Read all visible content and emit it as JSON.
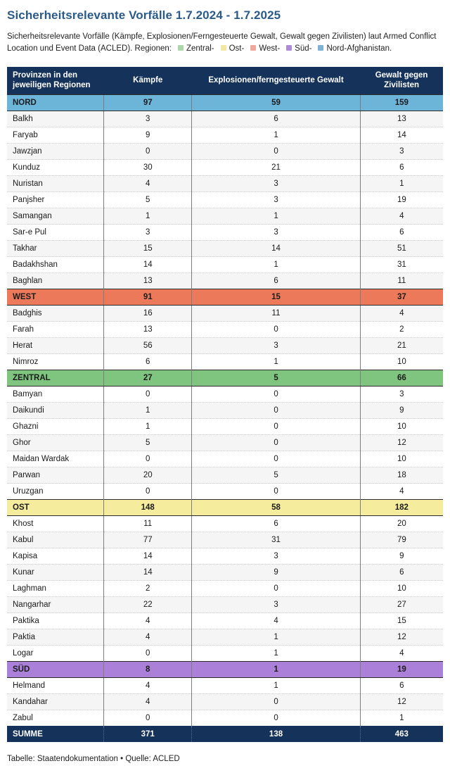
{
  "page": {
    "title": "Sicherheitsrelevante Vorfälle 1.7.2024 - 1.7.2025",
    "subtitle": "Sicherheitsrelevante Vorfälle (Kämpfe, Explosionen/Ferngesteuerte Gewalt, Gewalt gegen Zivilisten) laut Armed Conflict Location und Event Data (ACLED). Regionen:",
    "footer": "Tabelle: Staatendokumentation • Quelle: ACLED"
  },
  "colors": {
    "title_blue": "#2a5a8a",
    "header_navy": "#14325a",
    "region_nord": "#6db4d9",
    "region_west": "#ec7a5a",
    "region_zentral": "#7fc57f",
    "region_ost": "#f6ec9d",
    "region_sued": "#aa80d8"
  },
  "legend": {
    "items": [
      {
        "label": "Zentral-",
        "color": "#abd8a6"
      },
      {
        "label": "Ost-",
        "color": "#f1e9a2"
      },
      {
        "label": "West-",
        "color": "#f2a99c"
      },
      {
        "label": "Süd-",
        "color": "#af8cd9"
      },
      {
        "label": "Nord-Afghanistan.",
        "color": "#7db2d4"
      }
    ]
  },
  "chart_data": {
    "type": "table",
    "title": "Sicherheitsrelevante Vorfälle 1.7.2024 - 1.7.2025",
    "columns": [
      "Provinzen in den jeweiligen Regionen",
      "Kämpfe",
      "Explosionen/ferngesteuerte Gewalt",
      "Gewalt gegen Zivilisten"
    ],
    "rows": [
      {
        "type": "region",
        "name": "NORD",
        "color": "#6db4d9",
        "values": [
          97,
          59,
          159
        ]
      },
      {
        "type": "province",
        "name": "Balkh",
        "values": [
          3,
          6,
          13
        ]
      },
      {
        "type": "province",
        "name": "Faryab",
        "values": [
          9,
          1,
          14
        ]
      },
      {
        "type": "province",
        "name": "Jawzjan",
        "values": [
          0,
          0,
          3
        ]
      },
      {
        "type": "province",
        "name": "Kunduz",
        "values": [
          30,
          21,
          6
        ]
      },
      {
        "type": "province",
        "name": "Nuristan",
        "values": [
          4,
          3,
          1
        ]
      },
      {
        "type": "province",
        "name": "Panjsher",
        "values": [
          5,
          3,
          19
        ]
      },
      {
        "type": "province",
        "name": "Samangan",
        "values": [
          1,
          1,
          4
        ]
      },
      {
        "type": "province",
        "name": "Sar-e Pul",
        "values": [
          3,
          3,
          6
        ]
      },
      {
        "type": "province",
        "name": "Takhar",
        "values": [
          15,
          14,
          51
        ]
      },
      {
        "type": "province",
        "name": "Badakhshan",
        "values": [
          14,
          1,
          31
        ]
      },
      {
        "type": "province",
        "name": "Baghlan",
        "values": [
          13,
          6,
          11
        ]
      },
      {
        "type": "region",
        "name": "WEST",
        "color": "#ec7a5a",
        "values": [
          91,
          15,
          37
        ]
      },
      {
        "type": "province",
        "name": "Badghis",
        "values": [
          16,
          11,
          4
        ]
      },
      {
        "type": "province",
        "name": "Farah",
        "values": [
          13,
          0,
          2
        ]
      },
      {
        "type": "province",
        "name": "Herat",
        "values": [
          56,
          3,
          21
        ]
      },
      {
        "type": "province",
        "name": "Nimroz",
        "values": [
          6,
          1,
          10
        ]
      },
      {
        "type": "region",
        "name": "ZENTRAL",
        "color": "#7fc57f",
        "values": [
          27,
          5,
          66
        ]
      },
      {
        "type": "province",
        "name": "Bamyan",
        "values": [
          0,
          0,
          3
        ]
      },
      {
        "type": "province",
        "name": "Daikundi",
        "values": [
          1,
          0,
          9
        ]
      },
      {
        "type": "province",
        "name": "Ghazni",
        "values": [
          1,
          0,
          10
        ]
      },
      {
        "type": "province",
        "name": "Ghor",
        "values": [
          5,
          0,
          12
        ]
      },
      {
        "type": "province",
        "name": "Maidan Wardak",
        "values": [
          0,
          0,
          10
        ]
      },
      {
        "type": "province",
        "name": "Parwan",
        "values": [
          20,
          5,
          18
        ]
      },
      {
        "type": "province",
        "name": "Uruzgan",
        "values": [
          0,
          0,
          4
        ]
      },
      {
        "type": "region",
        "name": "OST",
        "color": "#f6ec9d",
        "values": [
          148,
          58,
          182
        ]
      },
      {
        "type": "province",
        "name": "Khost",
        "values": [
          11,
          6,
          20
        ]
      },
      {
        "type": "province",
        "name": "Kabul",
        "values": [
          77,
          31,
          79
        ]
      },
      {
        "type": "province",
        "name": "Kapisa",
        "values": [
          14,
          3,
          9
        ]
      },
      {
        "type": "province",
        "name": "Kunar",
        "values": [
          14,
          9,
          6
        ]
      },
      {
        "type": "province",
        "name": "Laghman",
        "values": [
          2,
          0,
          10
        ]
      },
      {
        "type": "province",
        "name": "Nangarhar",
        "values": [
          22,
          3,
          27
        ]
      },
      {
        "type": "province",
        "name": "Paktika",
        "values": [
          4,
          4,
          15
        ]
      },
      {
        "type": "province",
        "name": "Paktia",
        "values": [
          4,
          1,
          12
        ]
      },
      {
        "type": "province",
        "name": "Logar",
        "values": [
          0,
          1,
          4
        ]
      },
      {
        "type": "region",
        "name": "SÜD",
        "color": "#aa80d8",
        "values": [
          8,
          1,
          19
        ]
      },
      {
        "type": "province",
        "name": "Helmand",
        "values": [
          4,
          1,
          6
        ]
      },
      {
        "type": "province",
        "name": "Kandahar",
        "values": [
          4,
          0,
          12
        ]
      },
      {
        "type": "province",
        "name": "Zabul",
        "values": [
          0,
          0,
          1
        ]
      }
    ],
    "summary": {
      "label": "SUMME",
      "values": [
        371,
        138,
        463
      ]
    }
  }
}
